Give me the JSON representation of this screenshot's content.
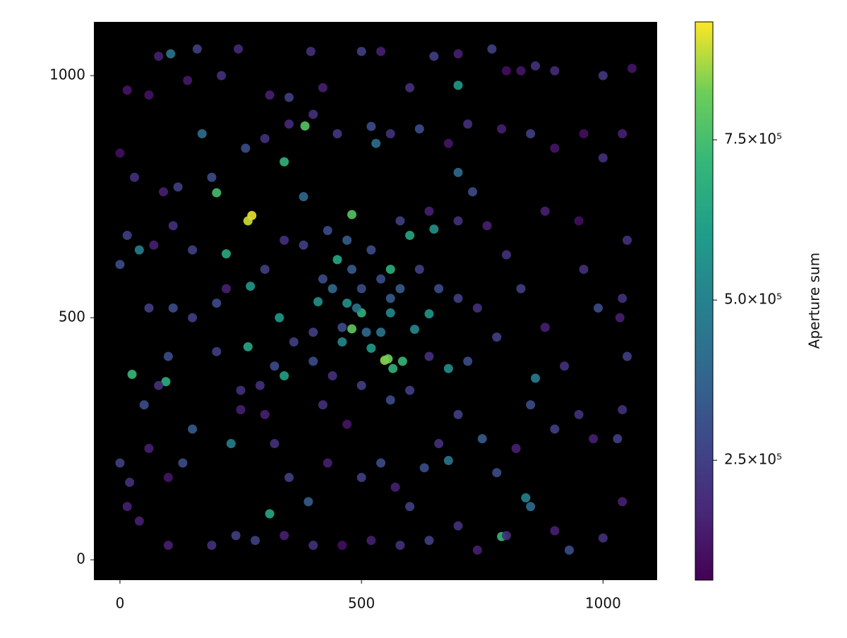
{
  "chart_data": {
    "type": "scatter",
    "colormap": "viridis",
    "background": "#000000",
    "x": [
      273,
      265,
      548,
      555,
      480,
      200,
      383,
      480,
      585,
      565,
      790,
      25,
      95,
      265,
      340,
      220,
      560,
      450,
      500,
      600,
      310,
      330,
      340,
      700,
      520,
      640,
      270,
      410,
      470,
      650,
      680,
      610,
      460,
      230,
      840,
      860,
      560,
      680,
      40,
      170,
      530,
      490,
      380,
      700,
      0,
      15,
      60,
      80,
      105,
      140,
      160,
      210,
      245,
      310,
      350,
      395,
      420,
      500,
      540,
      600,
      650,
      700,
      770,
      800,
      830,
      860,
      900,
      1000,
      1060,
      30,
      90,
      120,
      190,
      260,
      300,
      350,
      400,
      450,
      520,
      560,
      620,
      680,
      720,
      790,
      850,
      900,
      960,
      1000,
      1040,
      1050,
      1040,
      1035,
      1050,
      1040,
      1030,
      1040,
      1000,
      930,
      900,
      850,
      800,
      740,
      700,
      640,
      580,
      520,
      460,
      400,
      340,
      280,
      240,
      190,
      100,
      40,
      15,
      0,
      20,
      60,
      100,
      130,
      150,
      80,
      50,
      0,
      15,
      70,
      110,
      150,
      60,
      110,
      150,
      100,
      200,
      200,
      220,
      250,
      300,
      320,
      350,
      390,
      430,
      470,
      500,
      540,
      570,
      600,
      630,
      660,
      700,
      750,
      780,
      820,
      850,
      900,
      950,
      980,
      920,
      880,
      830,
      800,
      760,
      730,
      880,
      950,
      990,
      960,
      620,
      580,
      540,
      420,
      380,
      340,
      300,
      430,
      470,
      520,
      580,
      640,
      700,
      660,
      700,
      740,
      780,
      720,
      640,
      600,
      560,
      500,
      440,
      400,
      360,
      320,
      290,
      250,
      420,
      460,
      510,
      540,
      440,
      400,
      480,
      500,
      560
    ],
    "y": [
      711,
      700,
      412,
      415,
      477,
      758,
      896,
      713,
      410,
      395,
      48,
      383,
      368,
      440,
      822,
      632,
      600,
      620,
      510,
      670,
      95,
      500,
      380,
      980,
      437,
      508,
      565,
      533,
      530,
      683,
      395,
      476,
      450,
      240,
      128,
      375,
      510,
      205,
      640,
      880,
      860,
      520,
      750,
      800,
      840,
      970,
      960,
      1040,
      1045,
      990,
      1055,
      1000,
      1055,
      960,
      955,
      1050,
      975,
      1050,
      1050,
      975,
      1040,
      1045,
      1055,
      1010,
      1010,
      1020,
      1010,
      1000,
      1015,
      790,
      760,
      770,
      790,
      850,
      870,
      900,
      920,
      880,
      895,
      880,
      890,
      860,
      900,
      890,
      880,
      850,
      880,
      830,
      880,
      660,
      540,
      500,
      420,
      310,
      250,
      120,
      45,
      20,
      60,
      110,
      50,
      20,
      70,
      40,
      30,
      40,
      30,
      30,
      50,
      40,
      50,
      30,
      30,
      80,
      110,
      200,
      160,
      230,
      170,
      200,
      270,
      360,
      320,
      610,
      670,
      650,
      690,
      640,
      520,
      520,
      500,
      420,
      430,
      530,
      560,
      350,
      300,
      240,
      170,
      120,
      200,
      280,
      170,
      200,
      150,
      110,
      190,
      240,
      300,
      250,
      180,
      230,
      320,
      270,
      300,
      250,
      400,
      480,
      560,
      630,
      690,
      760,
      720,
      700,
      520,
      600,
      600,
      560,
      580,
      580,
      650,
      660,
      600,
      680,
      660,
      640,
      700,
      720,
      700,
      560,
      540,
      520,
      460,
      410,
      420,
      350,
      330,
      360,
      380,
      410,
      450,
      400,
      360,
      310,
      320,
      480,
      470,
      470,
      560,
      470,
      600,
      560,
      540
    ],
    "c": [
      920000,
      900000,
      850000,
      830000,
      800000,
      750000,
      780000,
      780000,
      720000,
      700000,
      720000,
      720000,
      680000,
      650000,
      700000,
      660000,
      680000,
      650000,
      700000,
      650000,
      650000,
      600000,
      620000,
      600000,
      600000,
      580000,
      580000,
      560000,
      560000,
      560000,
      550000,
      520000,
      520000,
      500000,
      500000,
      480000,
      520000,
      450000,
      480000,
      420000,
      420000,
      450000,
      400000,
      400000,
      100000,
      120000,
      110000,
      150000,
      450000,
      130000,
      250000,
      200000,
      180000,
      150000,
      250000,
      200000,
      150000,
      250000,
      150000,
      200000,
      250000,
      150000,
      250000,
      100000,
      120000,
      200000,
      180000,
      220000,
      120000,
      200000,
      150000,
      250000,
      300000,
      300000,
      200000,
      180000,
      200000,
      220000,
      300000,
      200000,
      300000,
      120000,
      200000,
      150000,
      250000,
      120000,
      100000,
      200000,
      150000,
      200000,
      200000,
      150000,
      250000,
      200000,
      250000,
      150000,
      200000,
      300000,
      150000,
      400000,
      200000,
      150000,
      200000,
      250000,
      200000,
      150000,
      100000,
      200000,
      150000,
      250000,
      250000,
      200000,
      150000,
      150000,
      150000,
      250000,
      200000,
      150000,
      120000,
      300000,
      350000,
      200000,
      300000,
      300000,
      250000,
      150000,
      200000,
      250000,
      250000,
      300000,
      250000,
      300000,
      250000,
      300000,
      150000,
      200000,
      150000,
      200000,
      250000,
      350000,
      150000,
      120000,
      250000,
      300000,
      150000,
      250000,
      300000,
      200000,
      250000,
      350000,
      300000,
      150000,
      300000,
      250000,
      200000,
      150000,
      200000,
      150000,
      250000,
      200000,
      150000,
      300000,
      150000,
      100000,
      300000,
      200000,
      250000,
      350000,
      300000,
      300000,
      250000,
      200000,
      250000,
      300000,
      350000,
      300000,
      250000,
      150000,
      200000,
      300000,
      250000,
      200000,
      250000,
      300000,
      200000,
      250000,
      300000,
      250000,
      200000,
      300000,
      250000,
      300000,
      200000,
      150000,
      200000,
      300000,
      400000,
      450000,
      400000,
      250000,
      350000,
      300000,
      350000
    ],
    "xlim": [
      -54,
      1112
    ],
    "ylim": [
      -42,
      1111
    ],
    "xticks": [
      0,
      500,
      1000
    ],
    "yticks": [
      0,
      500,
      1000
    ],
    "colorbar": {
      "label": "Aperture sum",
      "clim": [
        63000,
        934000
      ],
      "ticks": [
        {
          "value": 250000,
          "label": "2.5×10⁵"
        },
        {
          "value": 500000,
          "label": "5.0×10⁵"
        },
        {
          "value": 750000,
          "label": "7.5×10⁵"
        }
      ]
    }
  }
}
